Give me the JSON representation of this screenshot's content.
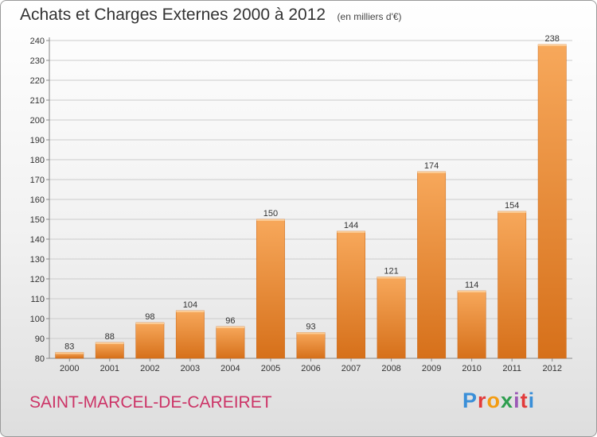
{
  "header": {
    "title": "Achats et Charges Externes 2000 à 2012",
    "subtitle": "(en milliers d'€)"
  },
  "footer": {
    "city": "SAINT-MARCEL-DE-CAREIRET",
    "brand": "Proxiti",
    "city_color": "#cc3366"
  },
  "colors": {
    "bar_top": "#f7a85b",
    "bar_bottom": "#d6701a",
    "grid": "#cccccc",
    "axis": "#888888"
  },
  "chart_data": {
    "type": "bar",
    "title": "Achats et Charges Externes 2000 à 2012",
    "subtitle": "(en milliers d'€)",
    "xlabel": "",
    "ylabel": "",
    "categories": [
      "2000",
      "2001",
      "2002",
      "2003",
      "2004",
      "2005",
      "2006",
      "2007",
      "2008",
      "2009",
      "2010",
      "2011",
      "2012"
    ],
    "values": [
      83,
      88,
      98,
      104,
      96,
      150,
      93,
      144,
      121,
      174,
      114,
      154,
      238
    ],
    "ylim": [
      80,
      240
    ],
    "yticks": [
      80,
      90,
      100,
      110,
      120,
      130,
      140,
      150,
      160,
      170,
      180,
      190,
      200,
      210,
      220,
      230,
      240
    ],
    "grid": true,
    "data_labels": true
  }
}
